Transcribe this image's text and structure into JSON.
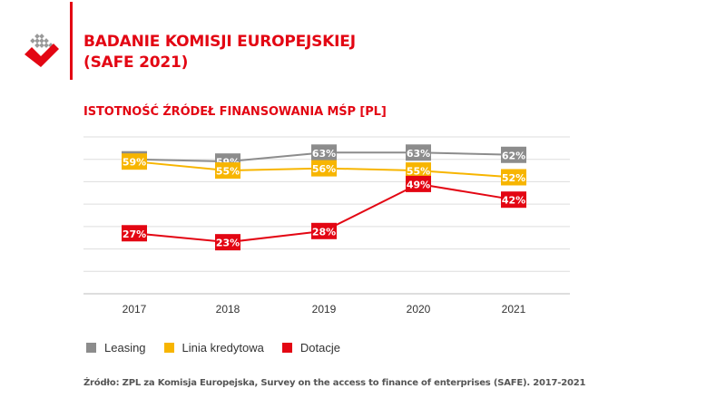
{
  "header": {
    "title_line1": "BADANIE KOMISJI EUROPEJSKIEJ",
    "title_line2": "(SAFE 2021)"
  },
  "logo": {
    "icon": "zpl-logo-icon"
  },
  "chart_data": {
    "type": "line",
    "title": "ISTOTNOŚĆ ŹRÓDEŁ FINANSOWANIA MŚP [PL]",
    "categories": [
      "2017",
      "2018",
      "2019",
      "2020",
      "2021"
    ],
    "ylim": [
      0,
      70
    ],
    "grid": true,
    "legend_position": "bottom-left",
    "series": [
      {
        "name": "Leasing",
        "color": "#8c8c8c",
        "values": [
          60,
          59,
          63,
          63,
          62
        ],
        "labels": [
          "60%",
          "59%",
          "63%",
          "63%",
          "62%"
        ]
      },
      {
        "name": "Linia kredytowa",
        "color": "#f7b500",
        "values": [
          59,
          55,
          56,
          55,
          52
        ],
        "labels": [
          "59%",
          "55%",
          "56%",
          "55%",
          "52%"
        ]
      },
      {
        "name": "Dotacje",
        "color": "#e30613",
        "values": [
          27,
          23,
          28,
          49,
          42
        ],
        "labels": [
          "27%",
          "23%",
          "28%",
          "49%",
          "42%"
        ]
      }
    ]
  },
  "source": "Źródło: ZPL za Komisja Europejska, Survey on the access to finance of enterprises (SAFE). 2017-2021"
}
